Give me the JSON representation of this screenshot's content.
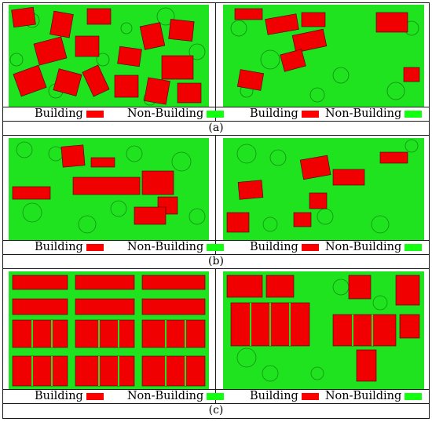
{
  "panels": [
    {
      "label": "(a)",
      "tiles": [
        {
          "legend": {
            "building": "Building",
            "non_building": "Non-Building"
          }
        },
        {
          "legend": {
            "building": "Building",
            "non_building": "Non-Building"
          }
        }
      ]
    },
    {
      "label": "(b)",
      "tiles": [
        {
          "legend": {
            "building": "Building",
            "non_building": "Non-Building"
          }
        },
        {
          "legend": {
            "building": "Building",
            "non_building": "Non-Building"
          }
        }
      ]
    },
    {
      "label": "(c)",
      "tiles": [
        {
          "legend": {
            "building": "Building",
            "non_building": "Non-Building"
          }
        },
        {
          "legend": {
            "building": "Building",
            "non_building": "Non-Building"
          }
        }
      ]
    }
  ],
  "colors": {
    "building": "#ff0000",
    "non_building": "#12ff12"
  }
}
